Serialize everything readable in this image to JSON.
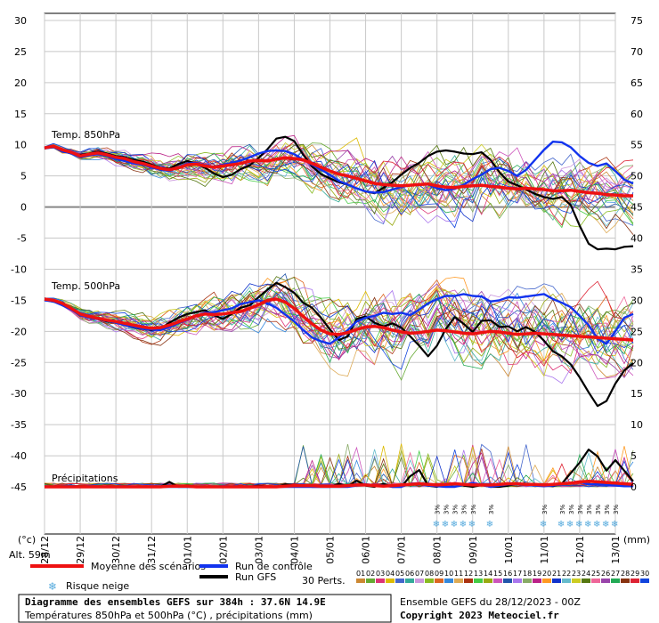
{
  "legend": {
    "mean": "Moyenne des scénarios",
    "control": "Run de contrôle",
    "gfs": "Run GFS",
    "snow_risk": "Risque neige",
    "perts": "30 Perts.",
    "pert_numbers": [
      "01",
      "02",
      "03",
      "04",
      "05",
      "06",
      "07",
      "08",
      "09",
      "10",
      "11",
      "12",
      "13",
      "14",
      "15",
      "16",
      "17",
      "18",
      "19",
      "20",
      "21",
      "22",
      "23",
      "24",
      "25",
      "26",
      "27",
      "28",
      "29",
      "30"
    ],
    "pert_colors": [
      "#cc8833",
      "#66aa33",
      "#dd3377",
      "#ddbb00",
      "#4466cc",
      "#33aa99",
      "#cc99dd",
      "#88bb22",
      "#dd6622",
      "#3388dd",
      "#ddaa55",
      "#aa3311",
      "#44cc44",
      "#99aa11",
      "#cc55bb",
      "#2255aa",
      "#aa77ee",
      "#88aa66",
      "#bb2288",
      "#ff9922",
      "#1133cc",
      "#66bbcc",
      "#cccc22",
      "#557711",
      "#ee6699",
      "#9944aa",
      "#22aa55",
      "#883311",
      "#dd2233",
      "#1144dd"
    ]
  },
  "labels": {
    "unit_left": "(°c)",
    "unit_right": "(mm)",
    "alt": "Alt. 59m",
    "title": "Diagramme des ensembles GEFS sur 384h : 37.6N 14.9E",
    "subtitle": "Températures 850hPa et 500hPa (°C) , précipitations (mm)",
    "run": "Ensemble GEFS du 28/12/2023 - 00Z",
    "copyright": "Copyright 2023 Meteociel.fr",
    "t850": "Temp. 850hPa",
    "t500": "Temp. 500hPa",
    "precip": "Précipitations"
  },
  "colors": {
    "mean": "#ee1111",
    "control": "#1133ee",
    "gfs": "#000000",
    "grid": "#c8c8c8",
    "snow": "#55aadd"
  },
  "chart_data": {
    "type": "line",
    "x_labels": [
      "28/12",
      "29/12",
      "30/12",
      "31/12",
      "01/01",
      "02/01",
      "03/01",
      "04/01",
      "05/01",
      "06/01",
      "07/01",
      "08/01",
      "09/01",
      "10/01",
      "11/01",
      "12/01",
      "13/01"
    ],
    "y_left_ticks": [
      30,
      25,
      20,
      15,
      10,
      5,
      0,
      -5,
      -10,
      -15,
      -20,
      -25,
      -30,
      -35,
      -40,
      -45
    ],
    "y_right_ticks": [
      75,
      70,
      65,
      60,
      55,
      50,
      45,
      40,
      35,
      30,
      25,
      20,
      15,
      10,
      5,
      0
    ],
    "ylim_left": [
      -45,
      30
    ],
    "ylim_right": [
      0,
      75
    ],
    "steps_per_day": 4,
    "snow_risk": {
      "label": "3%",
      "days": [
        11.0,
        11.25,
        11.5,
        11.75,
        12.0,
        12.5,
        14.0,
        14.5,
        14.75,
        15.0,
        15.25,
        15.5,
        15.75,
        16.0
      ]
    },
    "t850_mean": [
      9.5,
      9.8,
      9.2,
      8.8,
      8.2,
      8.5,
      8.7,
      8.4,
      8.0,
      7.8,
      7.3,
      7.0,
      6.6,
      6.2,
      6.0,
      6.3,
      6.8,
      6.9,
      6.6,
      6.4,
      6.6,
      6.8,
      7.0,
      7.4,
      7.5,
      7.4,
      7.7,
      7.9,
      7.8,
      7.6,
      7.0,
      6.4,
      5.8,
      5.3,
      5.0,
      4.6,
      4.2,
      3.8,
      3.6,
      3.5,
      3.4,
      3.5,
      3.6,
      3.7,
      3.4,
      3.2,
      3.1,
      3.3,
      3.4,
      3.5,
      3.3,
      3.2,
      3.0,
      2.9,
      3.0,
      2.9,
      2.8,
      2.6,
      2.6,
      2.7,
      2.5,
      2.3,
      2.2,
      2.0,
      1.9,
      1.8,
      1.8
    ],
    "t850_control": [
      9.5,
      9.8,
      9.0,
      8.6,
      8.0,
      8.3,
      8.5,
      8.2,
      7.7,
      7.4,
      7.0,
      6.8,
      6.4,
      6.0,
      5.8,
      6.4,
      7.0,
      7.1,
      6.7,
      6.5,
      6.8,
      7.1,
      7.5,
      8.0,
      8.6,
      9.0,
      9.1,
      9.0,
      8.5,
      7.6,
      6.8,
      6.0,
      5.2,
      4.2,
      3.6,
      3.0,
      2.5,
      2.3,
      2.4,
      2.8,
      3.2,
      3.5,
      3.7,
      3.6,
      3.0,
      2.7,
      2.9,
      3.6,
      4.5,
      5.2,
      6.1,
      6.3,
      5.8,
      5.0,
      6.0,
      7.6,
      9.2,
      10.5,
      10.4,
      9.6,
      8.2,
      7.1,
      6.6,
      7.0,
      5.8,
      4.4,
      3.8
    ],
    "t850_gfs": [
      9.5,
      9.7,
      9.3,
      8.7,
      8.4,
      8.6,
      8.9,
      8.6,
      8.2,
      8.0,
      7.6,
      7.3,
      6.8,
      6.3,
      6.2,
      6.9,
      7.4,
      7.0,
      6.3,
      5.4,
      4.8,
      5.2,
      6.1,
      6.7,
      7.9,
      9.3,
      11.0,
      11.3,
      10.6,
      8.4,
      6.5,
      5.3,
      4.6,
      4.0,
      3.6,
      3.0,
      2.5,
      2.2,
      3.1,
      4.0,
      5.2,
      6.3,
      7.1,
      8.2,
      8.9,
      9.1,
      8.9,
      8.6,
      8.5,
      8.8,
      7.6,
      5.6,
      4.1,
      3.5,
      2.8,
      2.1,
      1.6,
      1.3,
      1.6,
      0.3,
      -3.0,
      -5.9,
      -6.8,
      -6.7,
      -6.8,
      -6.4,
      -6.3
    ],
    "t500_mean": [
      -14.8,
      -15.0,
      -15.5,
      -16.3,
      -17.2,
      -17.6,
      -17.9,
      -18.2,
      -18.4,
      -18.7,
      -19.0,
      -19.3,
      -19.5,
      -19.4,
      -19.0,
      -18.5,
      -18.0,
      -17.5,
      -17.2,
      -17.3,
      -17.2,
      -17.0,
      -16.8,
      -16.3,
      -15.7,
      -15.0,
      -14.8,
      -15.3,
      -16.3,
      -17.6,
      -18.8,
      -19.8,
      -20.4,
      -20.5,
      -20.2,
      -19.7,
      -19.3,
      -19.2,
      -19.4,
      -19.8,
      -20.1,
      -20.3,
      -20.2,
      -20.0,
      -19.8,
      -19.9,
      -20.1,
      -20.3,
      -20.4,
      -20.2,
      -20.0,
      -20.1,
      -20.3,
      -20.5,
      -20.4,
      -20.3,
      -20.4,
      -20.5,
      -20.6,
      -20.7,
      -20.8,
      -20.9,
      -21.0,
      -21.1,
      -21.2,
      -21.3,
      -21.4
    ],
    "t500_control": [
      -15.0,
      -15.2,
      -15.8,
      -16.5,
      -17.4,
      -17.8,
      -18.0,
      -18.3,
      -18.6,
      -19.0,
      -19.3,
      -19.6,
      -19.7,
      -19.8,
      -19.3,
      -18.7,
      -18.1,
      -17.5,
      -17.0,
      -16.9,
      -16.6,
      -16.3,
      -15.6,
      -15.3,
      -15.0,
      -15.5,
      -16.2,
      -17.3,
      -18.4,
      -19.8,
      -21.0,
      -21.6,
      -22.0,
      -21.0,
      -19.8,
      -18.4,
      -17.8,
      -17.5,
      -17.0,
      -17.2,
      -17.0,
      -17.4,
      -16.5,
      -15.5,
      -14.8,
      -14.3,
      -14.3,
      -14.0,
      -14.3,
      -14.4,
      -15.2,
      -15.0,
      -14.5,
      -14.6,
      -14.4,
      -14.2,
      -14.0,
      -14.8,
      -15.4,
      -16.1,
      -17.5,
      -19.0,
      -21.2,
      -22.0,
      -20.0,
      -17.8,
      -17.2
    ],
    "t500_gfs": [
      -14.9,
      -15.1,
      -15.6,
      -16.4,
      -17.3,
      -17.7,
      -18.0,
      -18.4,
      -18.6,
      -19.0,
      -19.4,
      -19.6,
      -19.8,
      -19.6,
      -18.6,
      -17.8,
      -17.2,
      -16.9,
      -16.6,
      -17.4,
      -18.0,
      -17.2,
      -16.2,
      -15.8,
      -14.5,
      -13.3,
      -12.2,
      -12.9,
      -13.8,
      -15.4,
      -16.2,
      -17.8,
      -19.7,
      -21.4,
      -20.8,
      -18.0,
      -17.6,
      -18.6,
      -19.2,
      -18.7,
      -19.4,
      -20.8,
      -22.3,
      -24.0,
      -22.3,
      -19.6,
      -17.7,
      -18.8,
      -20.1,
      -18.3,
      -18.2,
      -19.3,
      -19.2,
      -20.0,
      -19.3,
      -20.1,
      -21.5,
      -23.2,
      -24.0,
      -25.3,
      -27.4,
      -29.8,
      -32.0,
      -31.2,
      -28.4,
      -26.3,
      -25.1
    ],
    "precip_mean": [
      0,
      0,
      0,
      0,
      0,
      0,
      0,
      0,
      0,
      0,
      0,
      0,
      0,
      0,
      0.1,
      0.1,
      0.1,
      0,
      0,
      0,
      0,
      0,
      0,
      0,
      0,
      0,
      0,
      0.1,
      0.2,
      0.2,
      0.2,
      0.1,
      0.1,
      0.1,
      0.2,
      0.3,
      0.3,
      0.2,
      0.1,
      0.2,
      0.3,
      0.4,
      0.5,
      0.4,
      0.3,
      0.4,
      0.5,
      0.4,
      0.3,
      0.3,
      0.3,
      0.4,
      0.5,
      0.5,
      0.4,
      0.4,
      0.3,
      0.4,
      0.5,
      0.6,
      0.8,
      0.9,
      0.8,
      0.7,
      0.6,
      0.5,
      0.4
    ],
    "precip_control": [
      0,
      0,
      0,
      0,
      0,
      0,
      0,
      0,
      0,
      0,
      0,
      0,
      0,
      0,
      0,
      0,
      0,
      0,
      0,
      0,
      0,
      0,
      0,
      0,
      0,
      0,
      0,
      0,
      0,
      0,
      0,
      0,
      0,
      0,
      0,
      0.2,
      0.4,
      0.3,
      0.2,
      0,
      0,
      0.5,
      0.6,
      0.2,
      0.1,
      0,
      0,
      0.3,
      0.6,
      0.3,
      0,
      0.2,
      0.4,
      0.4,
      0.3,
      0.2,
      0.1,
      0.2,
      0.4,
      0.6,
      0.8,
      0.4,
      0.4,
      0.3,
      0.2,
      0.1,
      0.1
    ],
    "precip_gfs": [
      0,
      0,
      0,
      0,
      0,
      0,
      0,
      0,
      0,
      0,
      0,
      0,
      0,
      0,
      0.8,
      0,
      0,
      0,
      0,
      0,
      0,
      0,
      0,
      0,
      0.2,
      0,
      0,
      0.4,
      0.3,
      0.2,
      0,
      0,
      0,
      0.5,
      0.1,
      1.0,
      0.2,
      0,
      0.5,
      0,
      0,
      1.7,
      2.7,
      0.2,
      0,
      0.4,
      0.6,
      0.2,
      0,
      0.3,
      0,
      0,
      0.2,
      0.5,
      0.3,
      0.4,
      0.2,
      0.1,
      0.5,
      2.2,
      3.9,
      6.0,
      4.9,
      2.6,
      4.3,
      2.6,
      0.9
    ],
    "members_note": "30 perturbed members drawn as thin coloured lines around the mean"
  }
}
